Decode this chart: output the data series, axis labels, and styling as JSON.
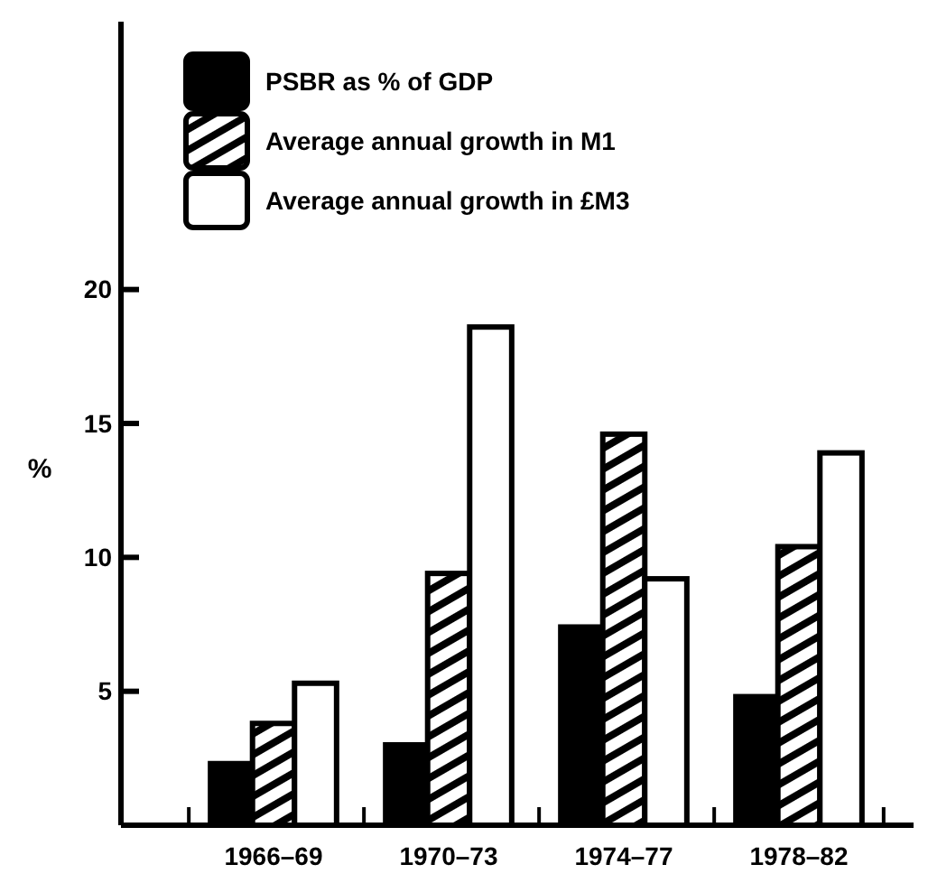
{
  "chart_data": {
    "type": "bar",
    "ylabel": "%",
    "categories": [
      "1966–69",
      "1970–73",
      "1974–77",
      "1978–82"
    ],
    "series": [
      {
        "name": "PSBR as % of GDP",
        "color": "#000000",
        "values": [
          2.3,
          3.0,
          7.4,
          4.8
        ]
      },
      {
        "name": "Average annual growth in M1",
        "color": "#000000",
        "values": [
          3.8,
          9.4,
          14.6,
          10.4
        ]
      },
      {
        "name": "Average annual growth in £M3",
        "color": "#ffffff",
        "values": [
          5.3,
          18.6,
          9.2,
          13.9
        ]
      }
    ],
    "ylim": [
      0,
      30
    ],
    "yticks": [
      5,
      10,
      15,
      20
    ],
    "grid": false,
    "legend": "top left"
  }
}
